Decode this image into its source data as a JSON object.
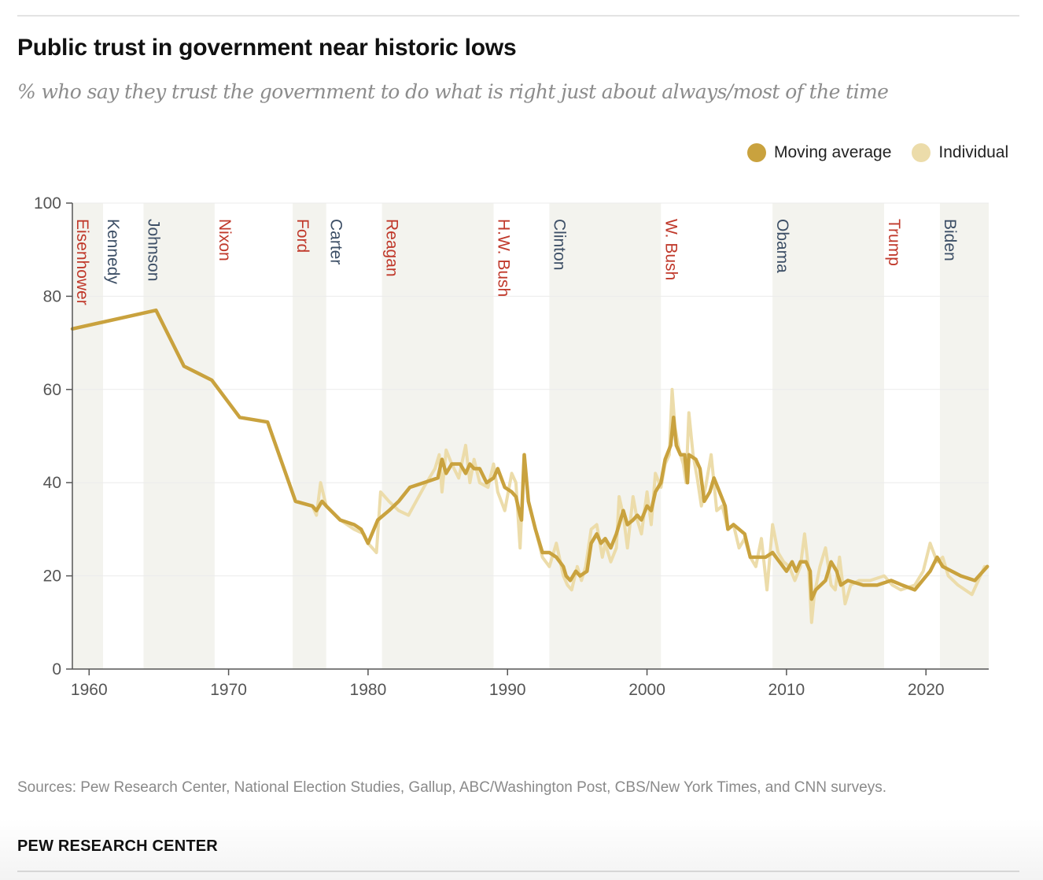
{
  "title": "Public trust in government near historic lows",
  "subtitle": "% who say they trust the government to do what is right just about always/most of the time",
  "legend": {
    "moving_average": "Moving average",
    "individual": "Individual"
  },
  "colors": {
    "moving_average": "#c9a23e",
    "individual": "#ecdcaa",
    "republican": "#c0392b",
    "democrat": "#3d4f66",
    "term_band": "#f3f3ee"
  },
  "footer": {
    "sources": "Sources: Pew Research Center, National Election Studies, Gallup, ABC/Washington Post, CBS/New York Times, and CNN surveys.",
    "org": "PEW RESEARCH CENTER"
  },
  "chart_data": {
    "type": "line",
    "xlim": [
      1958.8,
      2024.5
    ],
    "ylim": [
      0,
      100
    ],
    "x_ticks": [
      1960,
      1970,
      1980,
      1990,
      2000,
      2010,
      2020
    ],
    "y_ticks": [
      0,
      20,
      40,
      60,
      80,
      100
    ],
    "grid": "horizontal",
    "legend_position": "top-right",
    "presidents": [
      {
        "name": "Eisenhower",
        "party": "R",
        "start": 1958.8,
        "end": 1961.0
      },
      {
        "name": "Kennedy",
        "party": "D",
        "start": 1961.0,
        "end": 1963.9
      },
      {
        "name": "Johnson",
        "party": "D",
        "start": 1963.9,
        "end": 1969.0
      },
      {
        "name": "Nixon",
        "party": "R",
        "start": 1969.0,
        "end": 1974.6
      },
      {
        "name": "Ford",
        "party": "R",
        "start": 1974.6,
        "end": 1977.0
      },
      {
        "name": "Carter",
        "party": "D",
        "start": 1977.0,
        "end": 1981.0
      },
      {
        "name": "Reagan",
        "party": "R",
        "start": 1981.0,
        "end": 1989.0
      },
      {
        "name": "H.W. Bush",
        "party": "R",
        "start": 1989.0,
        "end": 1993.0
      },
      {
        "name": "Clinton",
        "party": "D",
        "start": 1993.0,
        "end": 2001.0
      },
      {
        "name": "W. Bush",
        "party": "R",
        "start": 2001.0,
        "end": 2009.0
      },
      {
        "name": "Obama",
        "party": "D",
        "start": 2009.0,
        "end": 2017.0
      },
      {
        "name": "Trump",
        "party": "R",
        "start": 2017.0,
        "end": 2021.0
      },
      {
        "name": "Biden",
        "party": "D",
        "start": 2021.0,
        "end": 2024.5
      }
    ],
    "series": [
      {
        "name": "Individual",
        "points": [
          [
            1958.8,
            73
          ],
          [
            1964.8,
            77
          ],
          [
            1966.8,
            65
          ],
          [
            1968.8,
            62
          ],
          [
            1970.8,
            54
          ],
          [
            1972.8,
            53
          ],
          [
            1974.8,
            36
          ],
          [
            1976,
            35
          ],
          [
            1976.3,
            33
          ],
          [
            1976.6,
            40
          ],
          [
            1977,
            35
          ],
          [
            1978,
            32
          ],
          [
            1979,
            30
          ],
          [
            1979.7,
            29
          ],
          [
            1980,
            27
          ],
          [
            1980.6,
            25
          ],
          [
            1980.9,
            38
          ],
          [
            1981.5,
            36
          ],
          [
            1982.2,
            34
          ],
          [
            1982.9,
            33
          ],
          [
            1984,
            39
          ],
          [
            1984.8,
            43
          ],
          [
            1985.1,
            46
          ],
          [
            1985.3,
            38
          ],
          [
            1985.6,
            47
          ],
          [
            1986,
            44
          ],
          [
            1986.5,
            41
          ],
          [
            1987,
            48
          ],
          [
            1987.3,
            40
          ],
          [
            1987.6,
            45
          ],
          [
            1988,
            40
          ],
          [
            1988.6,
            39
          ],
          [
            1989,
            44
          ],
          [
            1989.3,
            38
          ],
          [
            1989.8,
            34
          ],
          [
            1990.3,
            42
          ],
          [
            1990.6,
            40
          ],
          [
            1990.9,
            26
          ],
          [
            1991.2,
            46
          ],
          [
            1991.5,
            36
          ],
          [
            1992,
            30
          ],
          [
            1992.5,
            24
          ],
          [
            1993,
            22
          ],
          [
            1993.5,
            27
          ],
          [
            1994,
            20
          ],
          [
            1994.3,
            18
          ],
          [
            1994.6,
            17
          ],
          [
            1995,
            22
          ],
          [
            1995.3,
            19
          ],
          [
            1995.6,
            22
          ],
          [
            1996,
            30
          ],
          [
            1996.4,
            31
          ],
          [
            1996.8,
            24
          ],
          [
            1997,
            27
          ],
          [
            1997.4,
            23
          ],
          [
            1997.8,
            26
          ],
          [
            1998,
            37
          ],
          [
            1998.3,
            33
          ],
          [
            1998.6,
            26
          ],
          [
            1999,
            37
          ],
          [
            1999.3,
            32
          ],
          [
            1999.6,
            29
          ],
          [
            2000,
            38
          ],
          [
            2000.3,
            31
          ],
          [
            2000.6,
            42
          ],
          [
            2001,
            39
          ],
          [
            2001.3,
            44
          ],
          [
            2001.6,
            46
          ],
          [
            2001.8,
            60
          ],
          [
            2002,
            52
          ],
          [
            2002.3,
            47
          ],
          [
            2002.6,
            44
          ],
          [
            2002.8,
            40
          ],
          [
            2003,
            55
          ],
          [
            2003.3,
            46
          ],
          [
            2003.6,
            41
          ],
          [
            2003.9,
            35
          ],
          [
            2004.2,
            39
          ],
          [
            2004.6,
            46
          ],
          [
            2005,
            34
          ],
          [
            2005.4,
            35
          ],
          [
            2005.8,
            30
          ],
          [
            2006.2,
            31
          ],
          [
            2006.6,
            26
          ],
          [
            2007,
            28
          ],
          [
            2007.4,
            24
          ],
          [
            2007.8,
            22
          ],
          [
            2008.2,
            28
          ],
          [
            2008.6,
            17
          ],
          [
            2009,
            31
          ],
          [
            2009.4,
            25
          ],
          [
            2009.8,
            23
          ],
          [
            2010.2,
            22
          ],
          [
            2010.6,
            19
          ],
          [
            2011,
            22
          ],
          [
            2011.3,
            29
          ],
          [
            2011.6,
            21
          ],
          [
            2011.8,
            10
          ],
          [
            2012,
            16
          ],
          [
            2012.4,
            22
          ],
          [
            2012.8,
            26
          ],
          [
            2013.2,
            18
          ],
          [
            2013.5,
            17
          ],
          [
            2013.8,
            24
          ],
          [
            2014.2,
            14
          ],
          [
            2014.6,
            18
          ],
          [
            2015.2,
            19
          ],
          [
            2016,
            19
          ],
          [
            2017,
            20
          ],
          [
            2017.6,
            18
          ],
          [
            2018.2,
            17
          ],
          [
            2019.2,
            18
          ],
          [
            2019.8,
            21
          ],
          [
            2020.3,
            27
          ],
          [
            2020.8,
            23
          ],
          [
            2021.2,
            24
          ],
          [
            2021.6,
            20
          ],
          [
            2022.3,
            18
          ],
          [
            2023.3,
            16
          ],
          [
            2024.2,
            22
          ]
        ]
      },
      {
        "name": "Moving average",
        "points": [
          [
            1958.8,
            73
          ],
          [
            1964.8,
            77
          ],
          [
            1966.8,
            65
          ],
          [
            1968.8,
            62
          ],
          [
            1970.8,
            54
          ],
          [
            1972.8,
            53
          ],
          [
            1974.8,
            36
          ],
          [
            1976,
            35
          ],
          [
            1976.3,
            34
          ],
          [
            1976.7,
            36
          ],
          [
            1977,
            35
          ],
          [
            1978,
            32
          ],
          [
            1979,
            31
          ],
          [
            1979.5,
            30
          ],
          [
            1980,
            27
          ],
          [
            1980.7,
            32
          ],
          [
            1981.5,
            34
          ],
          [
            1982.2,
            36
          ],
          [
            1983,
            39
          ],
          [
            1984,
            40
          ],
          [
            1985,
            41
          ],
          [
            1985.3,
            45
          ],
          [
            1985.6,
            42
          ],
          [
            1986,
            44
          ],
          [
            1986.6,
            44
          ],
          [
            1987,
            42
          ],
          [
            1987.3,
            44
          ],
          [
            1987.6,
            43
          ],
          [
            1988,
            43
          ],
          [
            1988.5,
            40
          ],
          [
            1989,
            41
          ],
          [
            1989.3,
            43
          ],
          [
            1989.8,
            39
          ],
          [
            1990.3,
            38
          ],
          [
            1990.6,
            37
          ],
          [
            1990.9,
            33
          ],
          [
            1991,
            32
          ],
          [
            1991.2,
            46
          ],
          [
            1991.5,
            36
          ],
          [
            1992,
            30
          ],
          [
            1992.5,
            25
          ],
          [
            1993,
            25
          ],
          [
            1993.5,
            24
          ],
          [
            1994,
            22
          ],
          [
            1994.2,
            20
          ],
          [
            1994.5,
            19
          ],
          [
            1994.9,
            21
          ],
          [
            1995.2,
            20
          ],
          [
            1995.7,
            21
          ],
          [
            1996,
            27
          ],
          [
            1996.4,
            29
          ],
          [
            1996.7,
            27
          ],
          [
            1997,
            28
          ],
          [
            1997.4,
            26
          ],
          [
            1997.8,
            29
          ],
          [
            1998,
            31
          ],
          [
            1998.3,
            34
          ],
          [
            1998.6,
            31
          ],
          [
            1999,
            32
          ],
          [
            1999.3,
            33
          ],
          [
            1999.6,
            32
          ],
          [
            2000,
            35
          ],
          [
            2000.3,
            34
          ],
          [
            2000.6,
            38
          ],
          [
            2001,
            40
          ],
          [
            2001.3,
            45
          ],
          [
            2001.7,
            48
          ],
          [
            2001.9,
            54
          ],
          [
            2002.1,
            48
          ],
          [
            2002.4,
            46
          ],
          [
            2002.7,
            46
          ],
          [
            2002.9,
            40
          ],
          [
            2003,
            46
          ],
          [
            2003.5,
            45
          ],
          [
            2003.8,
            43
          ],
          [
            2004.1,
            36
          ],
          [
            2004.5,
            38
          ],
          [
            2004.8,
            41
          ],
          [
            2005.2,
            38
          ],
          [
            2005.6,
            35
          ],
          [
            2005.8,
            30
          ],
          [
            2006.2,
            31
          ],
          [
            2006.6,
            30
          ],
          [
            2007,
            29
          ],
          [
            2007.4,
            24
          ],
          [
            2008.5,
            24
          ],
          [
            2009,
            25
          ],
          [
            2009.5,
            23
          ],
          [
            2010,
            21
          ],
          [
            2010.4,
            23
          ],
          [
            2010.7,
            21
          ],
          [
            2011,
            23
          ],
          [
            2011.4,
            23
          ],
          [
            2011.7,
            21
          ],
          [
            2011.8,
            15
          ],
          [
            2012.1,
            17
          ],
          [
            2012.8,
            19
          ],
          [
            2013.2,
            23
          ],
          [
            2013.6,
            21
          ],
          [
            2013.9,
            18
          ],
          [
            2014.4,
            19
          ],
          [
            2015.5,
            18
          ],
          [
            2016.5,
            18
          ],
          [
            2017.5,
            19
          ],
          [
            2018.3,
            18
          ],
          [
            2019.2,
            17
          ],
          [
            2020.3,
            21
          ],
          [
            2020.8,
            24
          ],
          [
            2021.2,
            22
          ],
          [
            2022.5,
            20
          ],
          [
            2023.5,
            19
          ],
          [
            2024.4,
            22
          ]
        ]
      }
    ]
  }
}
